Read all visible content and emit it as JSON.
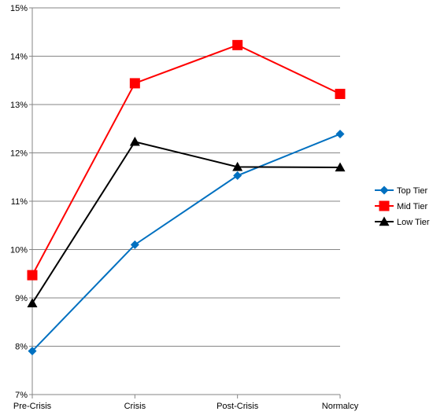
{
  "chart_data": {
    "type": "line",
    "categories": [
      "Pre-Crisis",
      "Crisis",
      "Post-Crisis",
      "Normalcy"
    ],
    "ylim": [
      7,
      15
    ],
    "yticks": [
      7,
      8,
      9,
      10,
      11,
      12,
      13,
      14,
      15
    ],
    "ytick_labels": [
      "7%",
      "8%",
      "9%",
      "10%",
      "11%",
      "12%",
      "13%",
      "14%",
      "15%"
    ],
    "grid": true,
    "legend_position": "right",
    "series": [
      {
        "name": "Top Tier",
        "color": "#0070C0",
        "marker": "diamond",
        "values": [
          7.9,
          10.1,
          11.53,
          12.39
        ]
      },
      {
        "name": "Mid Tier",
        "color": "#FF0000",
        "marker": "square",
        "values": [
          9.47,
          13.44,
          14.23,
          13.22
        ]
      },
      {
        "name": "Low Tier",
        "color": "#000000",
        "marker": "triangle",
        "values": [
          8.89,
          12.23,
          11.71,
          11.7
        ]
      }
    ]
  }
}
